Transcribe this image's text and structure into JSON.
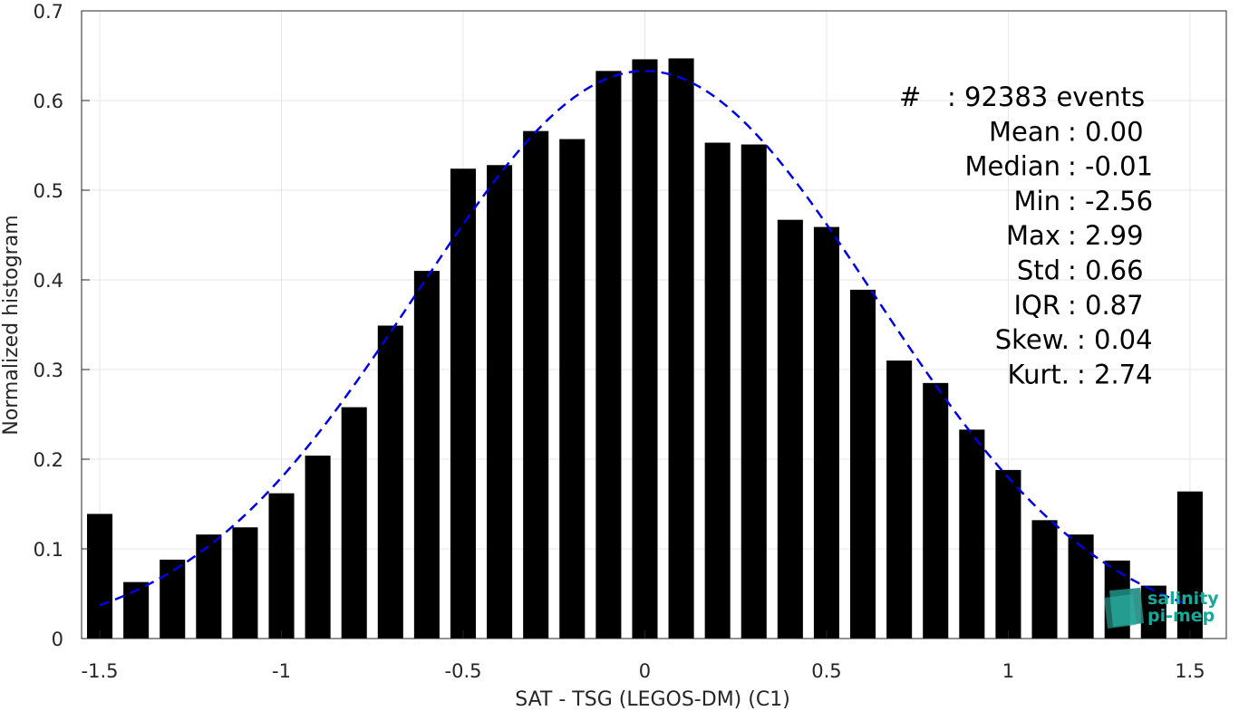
{
  "chart_data": {
    "type": "bar",
    "xlabel": "SAT - TSG (LEGOS-DM) (C1)",
    "ylabel": "Normalized histogram",
    "xlim": [
      -1.55,
      1.6
    ],
    "ylim": [
      0,
      0.7
    ],
    "xticks": [
      -1.5,
      -1,
      -0.5,
      0,
      0.5,
      1,
      1.5
    ],
    "xtick_labels": [
      "-1.5",
      "-1",
      "-0.5",
      "0",
      "0.5",
      "1",
      "1.5"
    ],
    "yticks": [
      0,
      0.1,
      0.2,
      0.3,
      0.4,
      0.5,
      0.6,
      0.7
    ],
    "ytick_labels": [
      "0",
      "0.1",
      "0.2",
      "0.3",
      "0.4",
      "0.5",
      "0.6",
      "0.7"
    ],
    "grid": true,
    "bar_width": 0.07,
    "series": [
      {
        "type": "bar",
        "color": "#000000",
        "x": [
          -1.5,
          -1.4,
          -1.3,
          -1.2,
          -1.1,
          -1.0,
          -0.9,
          -0.8,
          -0.7,
          -0.6,
          -0.5,
          -0.4,
          -0.3,
          -0.2,
          -0.1,
          0.0,
          0.1,
          0.2,
          0.3,
          0.4,
          0.5,
          0.6,
          0.7,
          0.8,
          0.9,
          1.0,
          1.1,
          1.2,
          1.3,
          1.4,
          1.5
        ],
        "values": [
          0.139,
          0.063,
          0.088,
          0.116,
          0.124,
          0.162,
          0.204,
          0.258,
          0.349,
          0.41,
          0.524,
          0.528,
          0.566,
          0.557,
          0.633,
          0.646,
          0.647,
          0.553,
          0.551,
          0.467,
          0.459,
          0.389,
          0.31,
          0.285,
          0.233,
          0.188,
          0.132,
          0.116,
          0.087,
          0.059,
          0.164
        ]
      },
      {
        "type": "line",
        "style": "dashed",
        "color": "#0000e0",
        "curve": "gaussian-fit",
        "mean": 0.0,
        "std": 0.63,
        "peak": 0.633,
        "x_range": [
          -1.5,
          1.5
        ]
      }
    ],
    "annotations": [
      {
        "label": "#  : 92383 events"
      },
      {
        "label": "Mean : 0.00"
      },
      {
        "label": "Median : -0.01"
      },
      {
        "label": "Min : -2.56"
      },
      {
        "label": "Max : 2.99"
      },
      {
        "label": "Std : 0.66"
      },
      {
        "label": "IQR : 0.87"
      },
      {
        "label": "Skew. : 0.04"
      },
      {
        "label": "Kurt. : 2.74"
      }
    ]
  },
  "logo": {
    "line1": "salinity",
    "line2": "pi-mep",
    "color": "#17a89a"
  }
}
